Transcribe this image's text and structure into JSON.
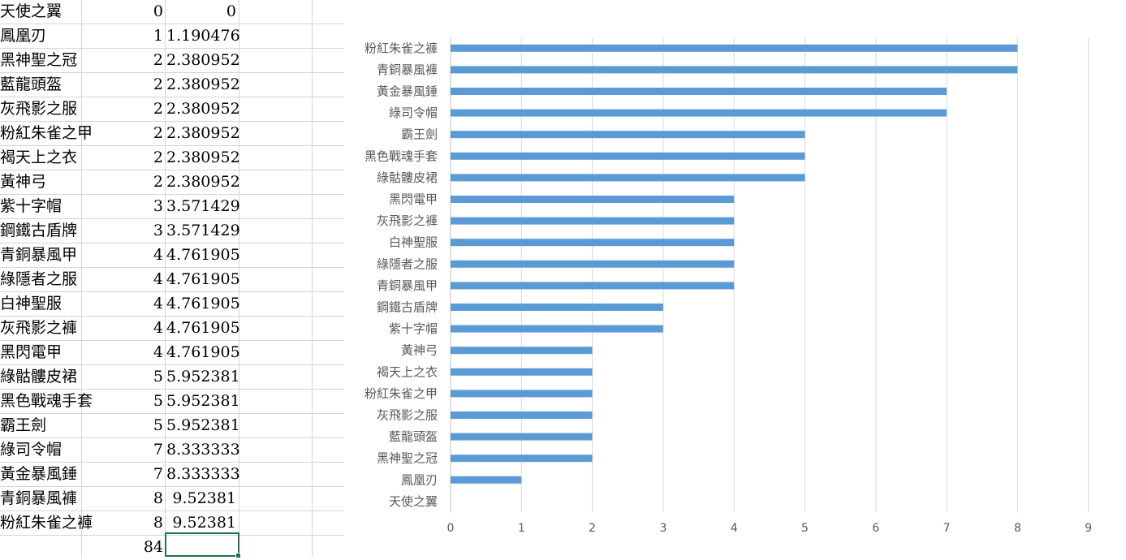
{
  "sheet": {
    "rows": [
      {
        "name": "天使之翼",
        "count": "0",
        "pct": "0"
      },
      {
        "name": "鳳凰刃",
        "count": "1",
        "pct": "1.190476"
      },
      {
        "name": "黑神聖之冠",
        "count": "2",
        "pct": "2.380952"
      },
      {
        "name": "藍龍頭盔",
        "count": "2",
        "pct": "2.380952"
      },
      {
        "name": "灰飛影之服",
        "count": "2",
        "pct": "2.380952"
      },
      {
        "name": "粉紅朱雀之甲",
        "count": "2",
        "pct": "2.380952"
      },
      {
        "name": "褐天上之衣",
        "count": "2",
        "pct": "2.380952"
      },
      {
        "name": "黃神弓",
        "count": "2",
        "pct": "2.380952"
      },
      {
        "name": "紫十字帽",
        "count": "3",
        "pct": "3.571429"
      },
      {
        "name": "鋼鐵古盾牌",
        "count": "3",
        "pct": "3.571429"
      },
      {
        "name": "青銅暴風甲",
        "count": "4",
        "pct": "4.761905"
      },
      {
        "name": "綠隱者之服",
        "count": "4",
        "pct": "4.761905"
      },
      {
        "name": "白神聖服",
        "count": "4",
        "pct": "4.761905"
      },
      {
        "name": "灰飛影之褲",
        "count": "4",
        "pct": "4.761905"
      },
      {
        "name": "黑閃電甲",
        "count": "4",
        "pct": "4.761905"
      },
      {
        "name": "綠骷髏皮裙",
        "count": "5",
        "pct": "5.952381"
      },
      {
        "name": "黑色戰魂手套",
        "count": "5",
        "pct": "5.952381"
      },
      {
        "name": "霸王劍",
        "count": "5",
        "pct": "5.952381"
      },
      {
        "name": "綠司令帽",
        "count": "7",
        "pct": "8.333333"
      },
      {
        "name": "黃金暴風錘",
        "count": "7",
        "pct": "8.333333"
      },
      {
        "name": "青銅暴風褲",
        "count": "8",
        "pct": "9.52381"
      },
      {
        "name": "粉紅朱雀之褲",
        "count": "8",
        "pct": "9.52381"
      }
    ],
    "total": "84"
  },
  "chart_data": {
    "type": "bar",
    "orientation": "horizontal",
    "categories": [
      "天使之翼",
      "鳳凰刃",
      "黑神聖之冠",
      "藍龍頭盔",
      "灰飛影之服",
      "粉紅朱雀之甲",
      "褐天上之衣",
      "黃神弓",
      "紫十字帽",
      "鋼鐵古盾牌",
      "青銅暴風甲",
      "綠隱者之服",
      "白神聖服",
      "灰飛影之褲",
      "黑閃電甲",
      "綠骷髏皮裙",
      "黑色戰魂手套",
      "霸王劍",
      "綠司令帽",
      "黃金暴風錘",
      "青銅暴風褲",
      "粉紅朱雀之褲"
    ],
    "values": [
      0,
      1,
      2,
      2,
      2,
      2,
      2,
      2,
      3,
      3,
      4,
      4,
      4,
      4,
      4,
      5,
      5,
      5,
      7,
      7,
      8,
      8
    ],
    "xlim": [
      0,
      9
    ],
    "xticks": [
      "0",
      "1",
      "2",
      "3",
      "4",
      "5",
      "6",
      "7",
      "8",
      "9"
    ],
    "grid": true,
    "legend": false,
    "bar_color": "#5b9bd5"
  }
}
